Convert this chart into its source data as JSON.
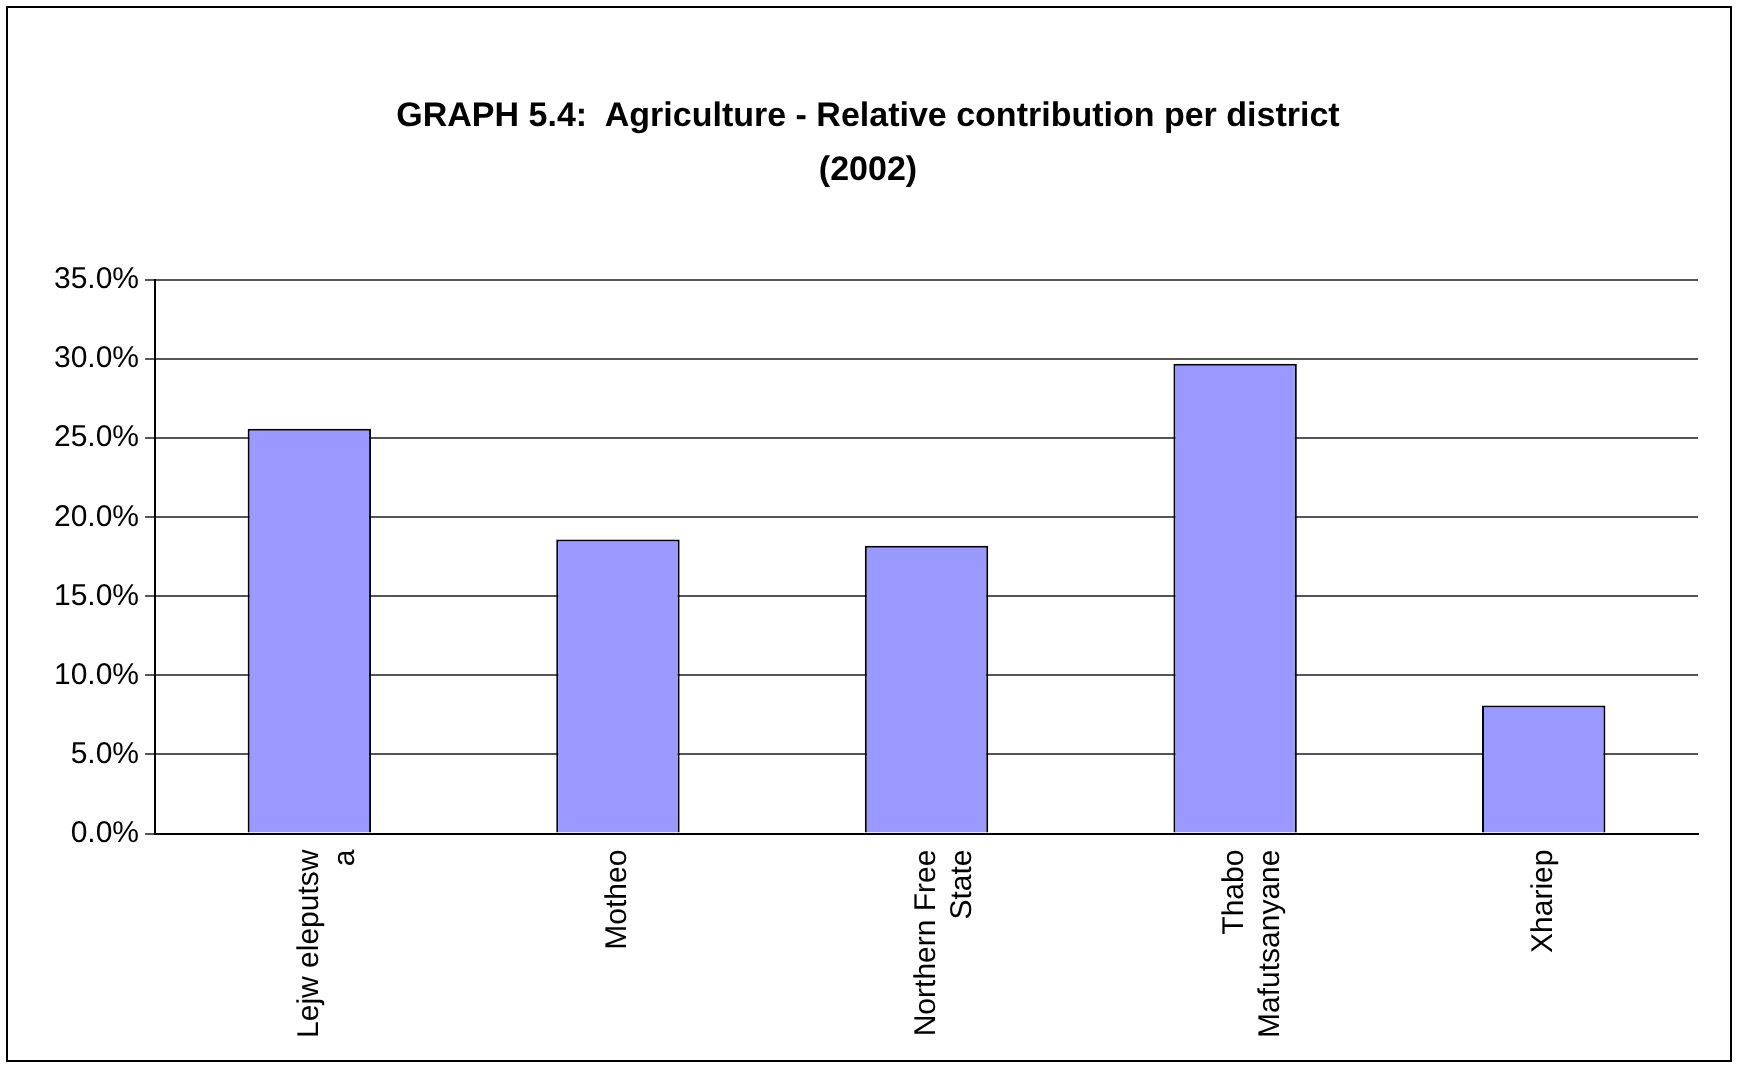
{
  "chart_data": {
    "type": "bar",
    "title": "GRAPH 5.4:  Agriculture - Relative contribution per district (2002)",
    "categories": [
      "Lejw eleputsw a",
      "Motheo",
      "Northern Free State",
      "Thabo Mafutsanyane",
      "Xhariep"
    ],
    "values": [
      25.6,
      18.6,
      18.2,
      29.7,
      8.1
    ],
    "color": "#9999ff",
    "ylim": [
      0,
      35
    ],
    "yticks": [
      {
        "value": 0,
        "label": "0.0%"
      },
      {
        "value": 5,
        "label": "5.0%"
      },
      {
        "value": 10,
        "label": "10.0%"
      },
      {
        "value": 15,
        "label": "15.0%"
      },
      {
        "value": 20,
        "label": "20.0%"
      },
      {
        "value": 25,
        "label": "25.0%"
      },
      {
        "value": 30,
        "label": "30.0%"
      },
      {
        "value": 35,
        "label": "35.0%"
      }
    ],
    "grid": "y",
    "legend": false
  }
}
